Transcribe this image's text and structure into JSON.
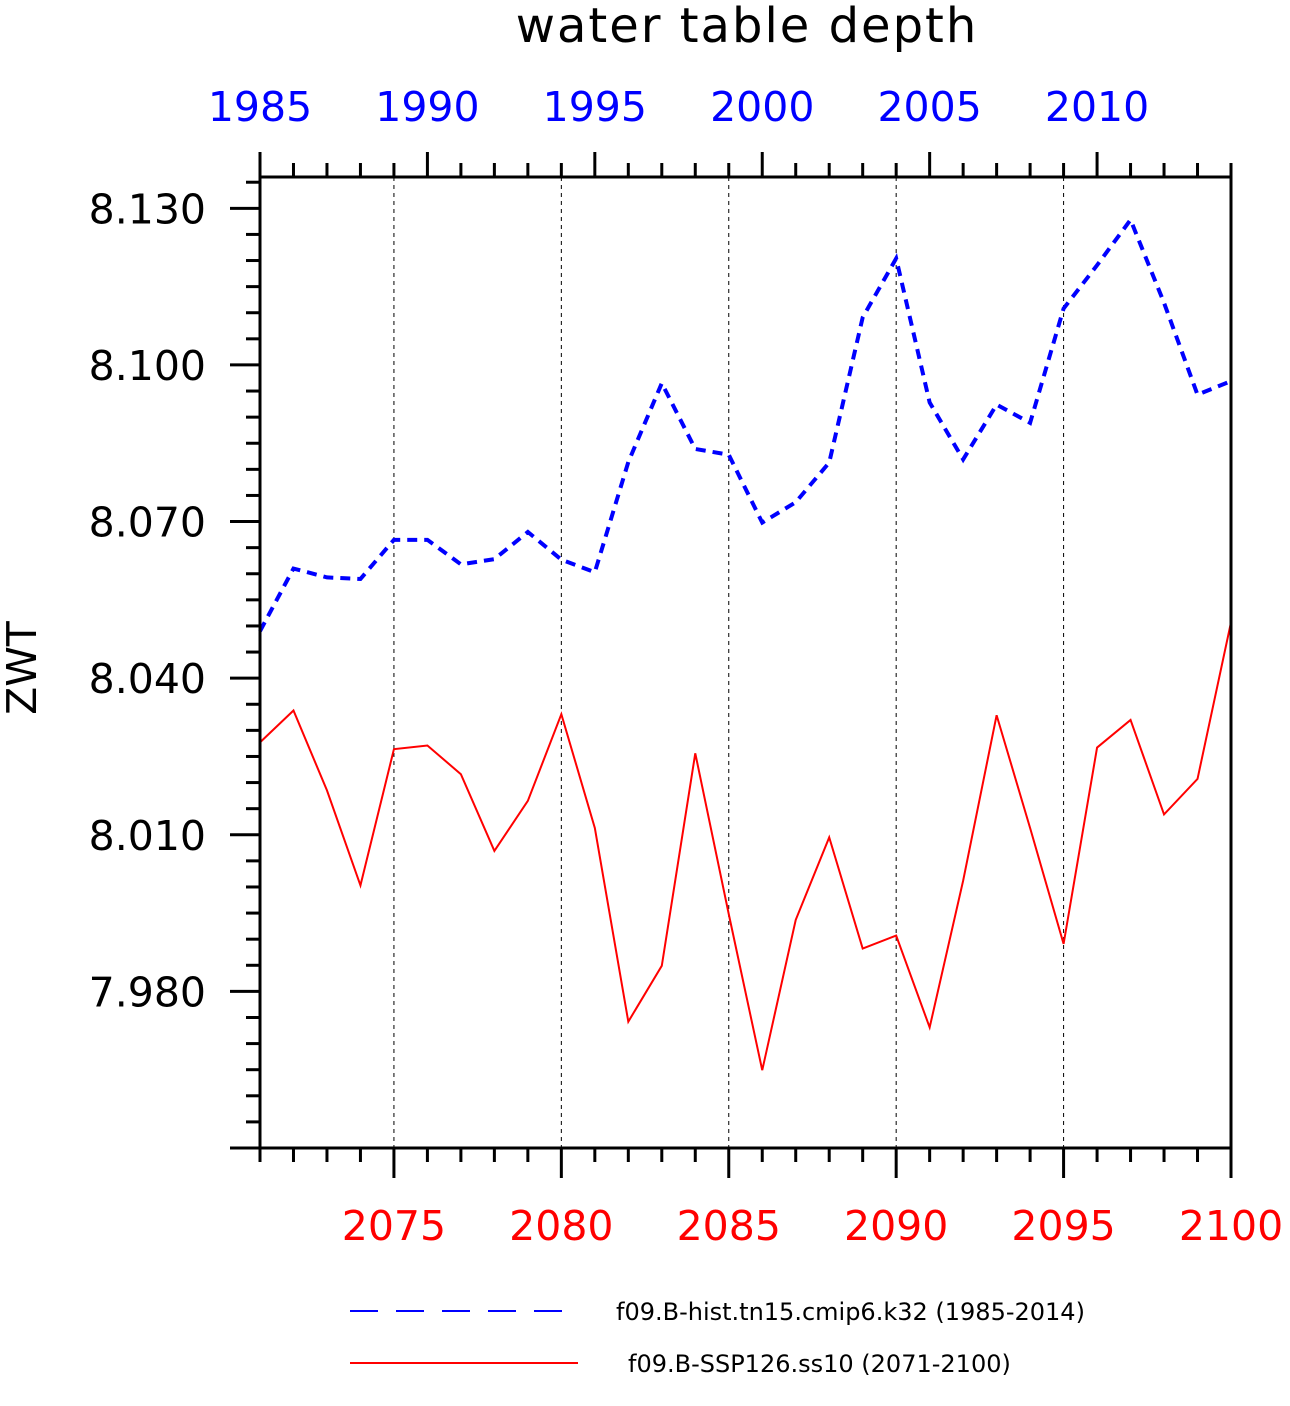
{
  "chart_data": {
    "type": "line",
    "title": "water table depth",
    "ylabel": "ZWT",
    "ylim": [
      7.95,
      8.136
    ],
    "y_ticks": [
      "8.130",
      "8.100",
      "8.070",
      "8.040",
      "8.010",
      "7.980"
    ],
    "top_axis": {
      "range": [
        1985,
        2014
      ],
      "tick_values": [
        1985,
        1990,
        1995,
        2000,
        2005,
        2010
      ],
      "tick_labels": [
        "1985",
        "1990",
        "1995",
        "2000",
        "2005",
        "2010"
      ],
      "color": "#0000ff"
    },
    "bottom_axis": {
      "range": [
        2071,
        2100
      ],
      "tick_values": [
        2075,
        2080,
        2085,
        2090,
        2095,
        2100
      ],
      "tick_labels": [
        "2075",
        "2080",
        "2085",
        "2090",
        "2095",
        "2100"
      ],
      "color": "#ff0000"
    },
    "grid": "vertical dashed lines at labeled years",
    "legend_position": "bottom",
    "series": [
      {
        "name": "f09.B-hist.tn15.cmip6.k32 (1985-2014)",
        "color": "#0000ff",
        "style": "dashed",
        "x": [
          1985,
          1986,
          1987,
          1988,
          1989,
          1990,
          1991,
          1992,
          1993,
          1994,
          1995,
          1996,
          1997,
          1998,
          1999,
          2000,
          2001,
          2002,
          2003,
          2004,
          2005,
          2006,
          2007,
          2008,
          2009,
          2010,
          2011,
          2012,
          2013,
          2014
        ],
        "values": [
          8.049,
          8.061,
          8.0593,
          8.059,
          8.0665,
          8.0665,
          8.0618,
          8.0628,
          8.068,
          8.0627,
          8.0603,
          8.0814,
          8.0965,
          8.0839,
          8.0828,
          8.0698,
          8.0737,
          8.0813,
          8.1091,
          8.1204,
          8.0928,
          8.0819,
          8.0924,
          8.0889,
          8.1108,
          8.1191,
          8.1278,
          8.1119,
          8.0943,
          8.0969
        ]
      },
      {
        "name": "f09.B-SSP126.ss10 (2071-2100)",
        "color": "#ff0000",
        "style": "solid",
        "x": [
          2071,
          2072,
          2073,
          2074,
          2075,
          2076,
          2077,
          2078,
          2079,
          2080,
          2081,
          2082,
          2083,
          2084,
          2085,
          2086,
          2087,
          2088,
          2089,
          2090,
          2091,
          2092,
          2093,
          2094,
          2095,
          2096,
          2097,
          2098,
          2099,
          2100
        ],
        "values": [
          8.0277,
          8.0338,
          8.0185,
          8.0003,
          8.0264,
          8.0271,
          8.0216,
          8.0069,
          8.0165,
          8.0331,
          8.0113,
          7.9742,
          7.9849,
          8.0256,
          7.9948,
          7.9649,
          7.9937,
          8.0095,
          7.9882,
          7.9907,
          7.9731,
          8.0012,
          8.0329,
          8.0113,
          7.9891,
          8.0267,
          8.032,
          8.0139,
          8.0207,
          8.0507
        ]
      }
    ]
  }
}
